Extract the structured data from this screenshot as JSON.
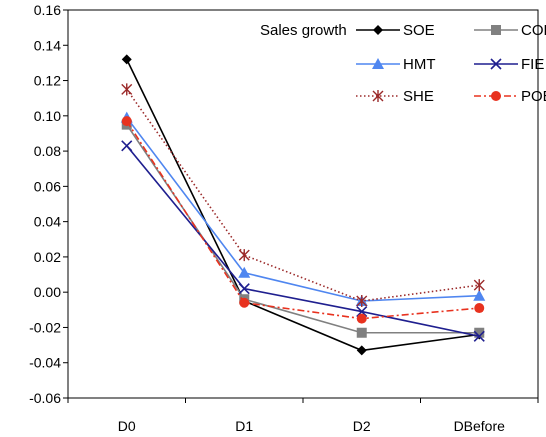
{
  "chart_data": {
    "type": "line",
    "title": "Sales growth",
    "xlabel": "",
    "ylabel": "",
    "categories": [
      "D0",
      "D1",
      "D2",
      "DBefore"
    ],
    "ylim": [
      -0.06,
      0.16
    ],
    "yticks": [
      "0.16",
      "0.14",
      "0.12",
      "0.10",
      "0.08",
      "0.06",
      "0.04",
      "0.02",
      "0.00",
      "-0.02",
      "-0.04",
      "-0.06"
    ],
    "grid": "none",
    "legend_position": "top-right",
    "series": [
      {
        "name": "SOE",
        "values": [
          0.132,
          -0.005,
          -0.033,
          -0.024
        ],
        "color": "#000000",
        "marker": "diamond",
        "line": "solid"
      },
      {
        "name": "COE",
        "values": [
          0.095,
          -0.004,
          -0.023,
          -0.023
        ],
        "color": "#808080",
        "marker": "square",
        "line": "solid"
      },
      {
        "name": "HMT",
        "values": [
          0.099,
          0.011,
          -0.005,
          -0.002
        ],
        "color": "#4f86f0",
        "marker": "triangle",
        "line": "solid"
      },
      {
        "name": "FIE",
        "values": [
          0.083,
          0.002,
          -0.011,
          -0.025
        ],
        "color": "#1f1f8f",
        "marker": "x",
        "line": "solid"
      },
      {
        "name": "SHE",
        "values": [
          0.115,
          0.021,
          -0.005,
          0.004
        ],
        "color": "#9b2a2a",
        "marker": "asterisk",
        "line": "dotted"
      },
      {
        "name": "POE",
        "values": [
          0.097,
          -0.006,
          -0.015,
          -0.009
        ],
        "color": "#e8321f",
        "marker": "circle",
        "line": "dashdot"
      }
    ]
  }
}
